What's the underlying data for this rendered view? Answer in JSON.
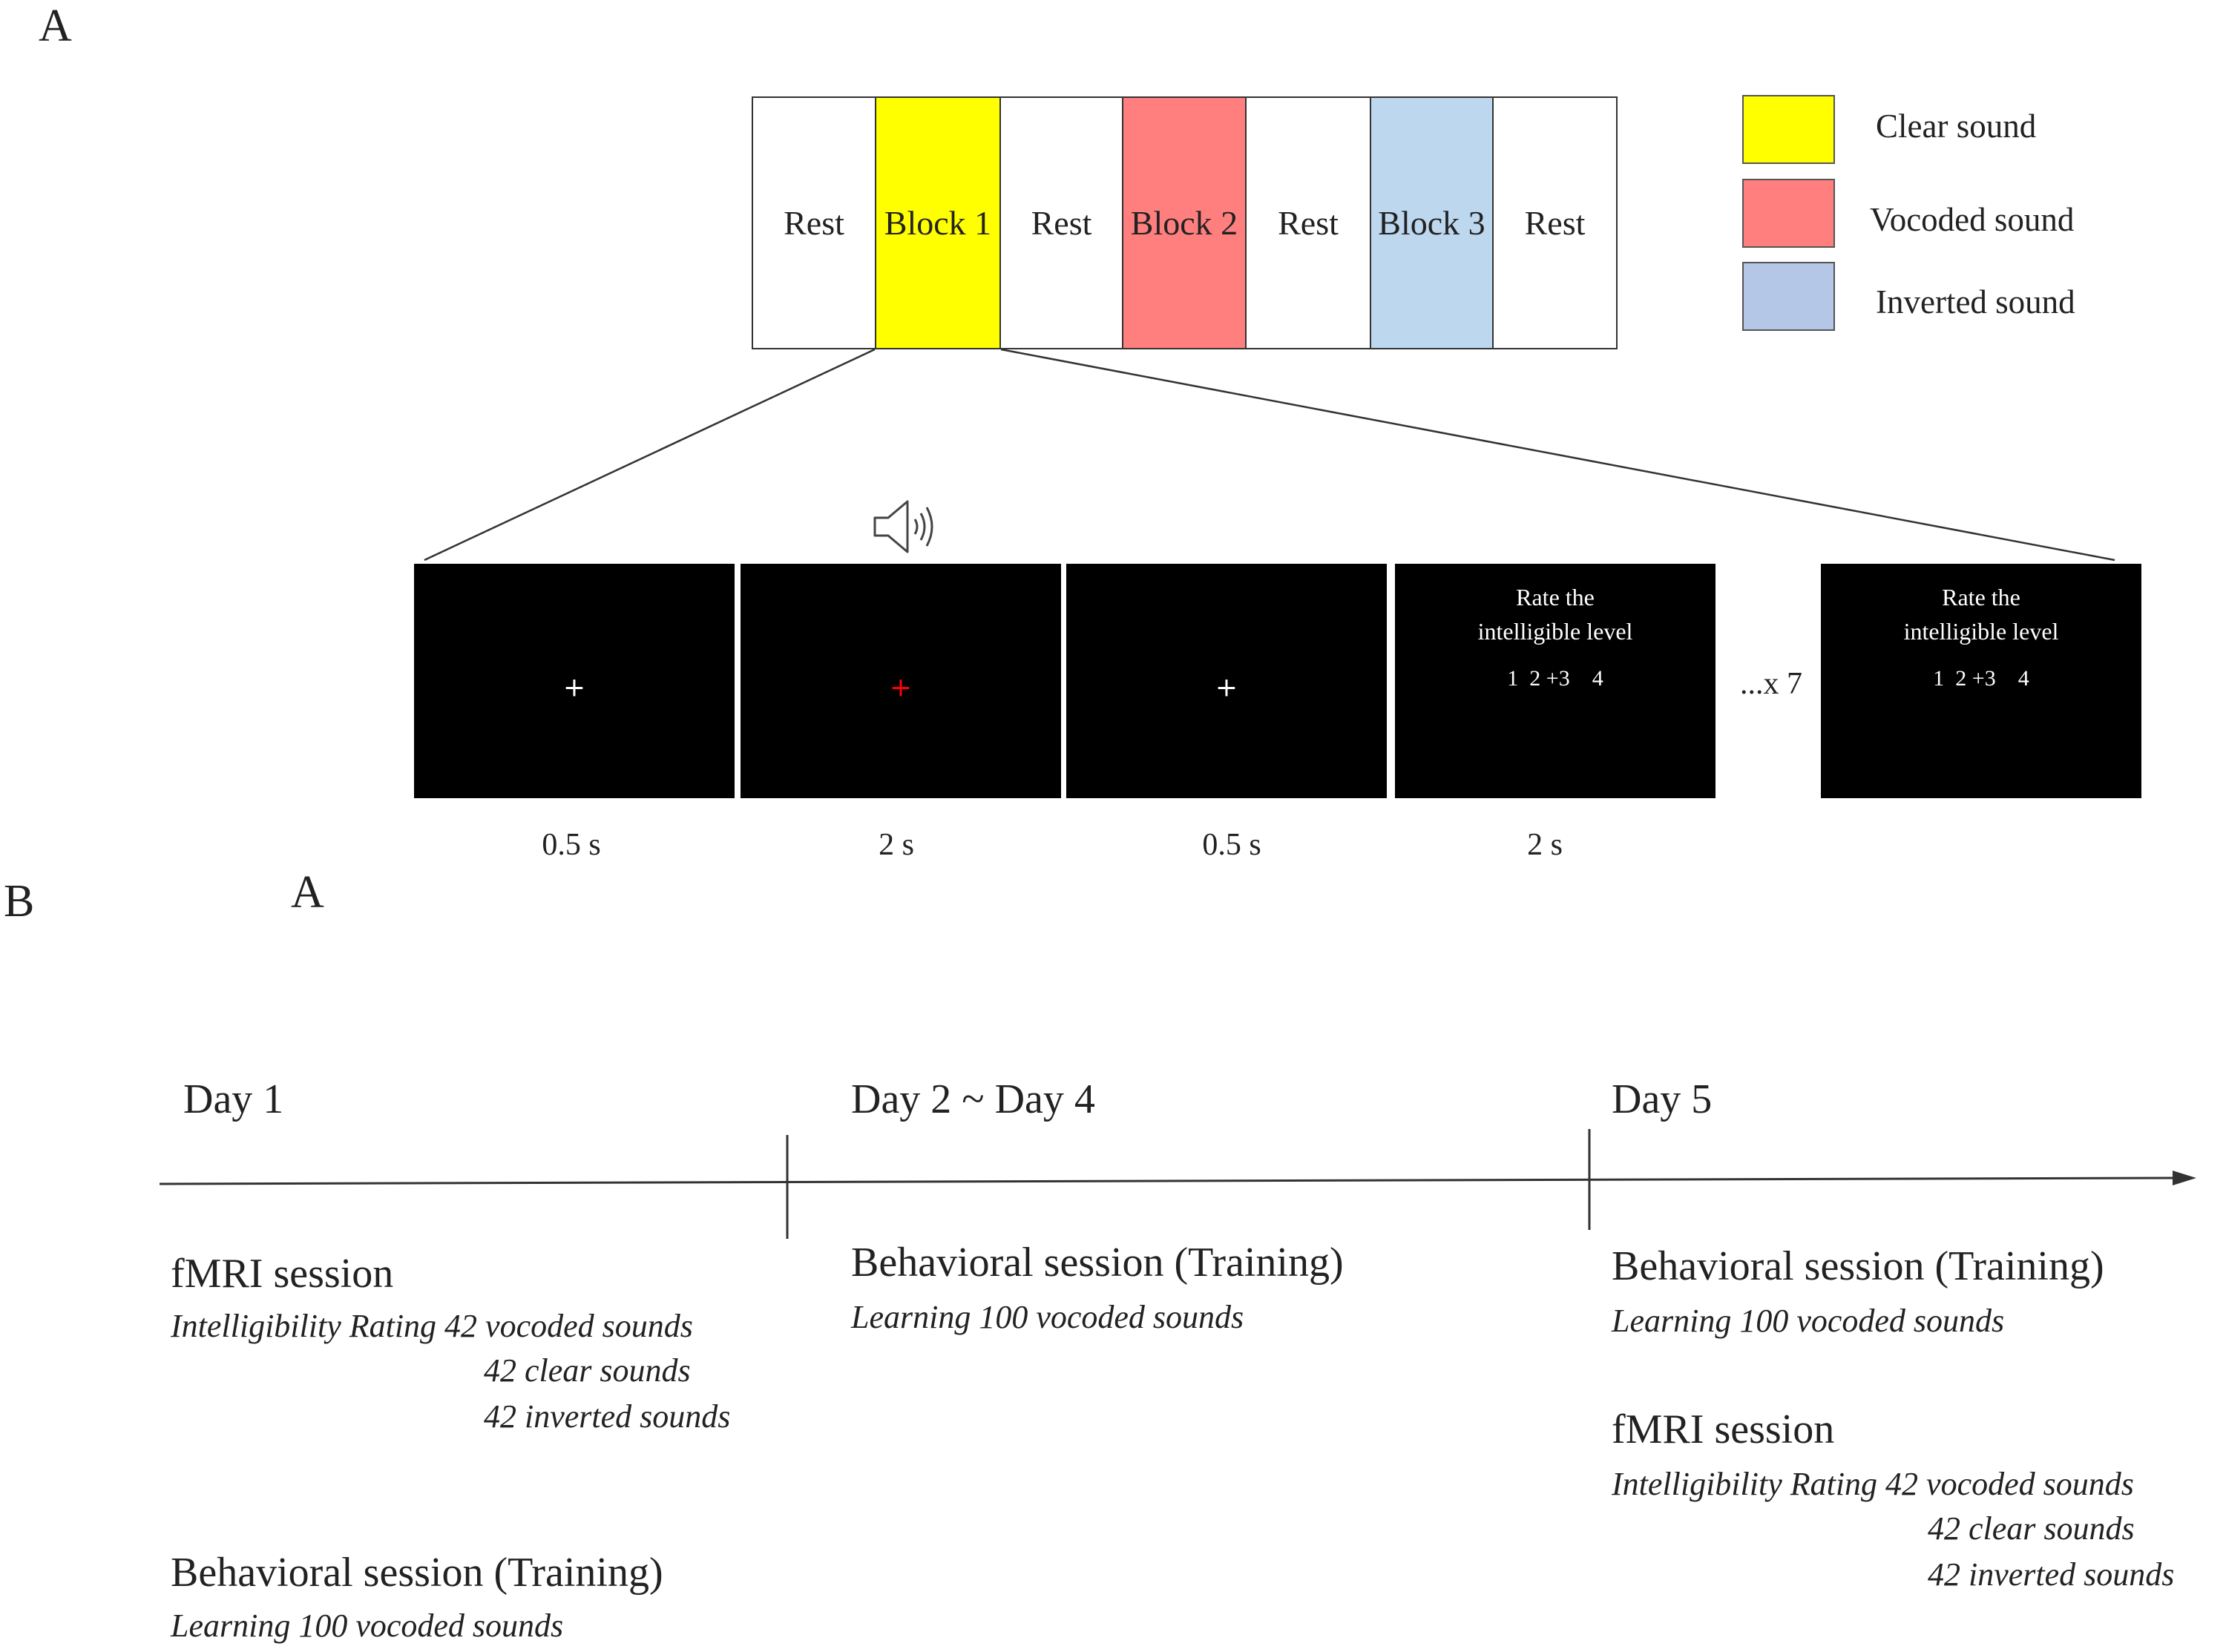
{
  "panel_a": {
    "label": "A",
    "blocks": [
      {
        "label": "Rest",
        "color": "#ffffff"
      },
      {
        "label": "Block 1",
        "color": "#ffff00"
      },
      {
        "label": "Rest",
        "color": "#ffffff"
      },
      {
        "label": "Block 2",
        "color": "#ff7f7f"
      },
      {
        "label": "Rest",
        "color": "#ffffff"
      },
      {
        "label": "Block 3",
        "color": "#bdd7ee"
      },
      {
        "label": "Rest",
        "color": "#ffffff"
      }
    ],
    "legend": [
      {
        "label": "Clear sound",
        "color": "#ffff00"
      },
      {
        "label": "Vocoded sound",
        "color": "#ff7f7f"
      },
      {
        "label": "Inverted sound",
        "color": "#b4c7e7"
      }
    ],
    "trial": {
      "fixation_symbol": "+",
      "fixation_white": "#ffffff",
      "fixation_red": "#ff0000",
      "rate_prompt_line1": "Rate the",
      "rate_prompt_line2": "intelligible  level",
      "rate_scale": "1  2 +3    4",
      "repeat_label": "...x 7",
      "durations": [
        "0.5 s",
        "2 s",
        "0.5 s",
        "2 s"
      ]
    },
    "stray_label": "A"
  },
  "panel_b": {
    "label": "B",
    "days": [
      "Day 1",
      "Day 2 ~ Day 4",
      "Day 5"
    ],
    "day1": {
      "fmri_title": "fMRI session",
      "rating_line": "Intelligibility Rating 42 vocoded sounds",
      "clear_line": "42 clear sounds",
      "inverted_line": "42 inverted sounds",
      "behavioral_title": "Behavioral session (Training)",
      "learning_line": "Learning 100 vocoded sounds"
    },
    "day2_4": {
      "behavioral_title": "Behavioral session (Training)",
      "learning_line": "Learning 100 vocoded sounds"
    },
    "day5": {
      "behavioral_title": "Behavioral session (Training)",
      "learning_line": "Learning 100 vocoded sounds",
      "fmri_title": "fMRI session",
      "rating_line": "Intelligibility Rating 42 vocoded sounds",
      "clear_line": "42 clear sounds",
      "inverted_line": "42 inverted sounds"
    }
  }
}
